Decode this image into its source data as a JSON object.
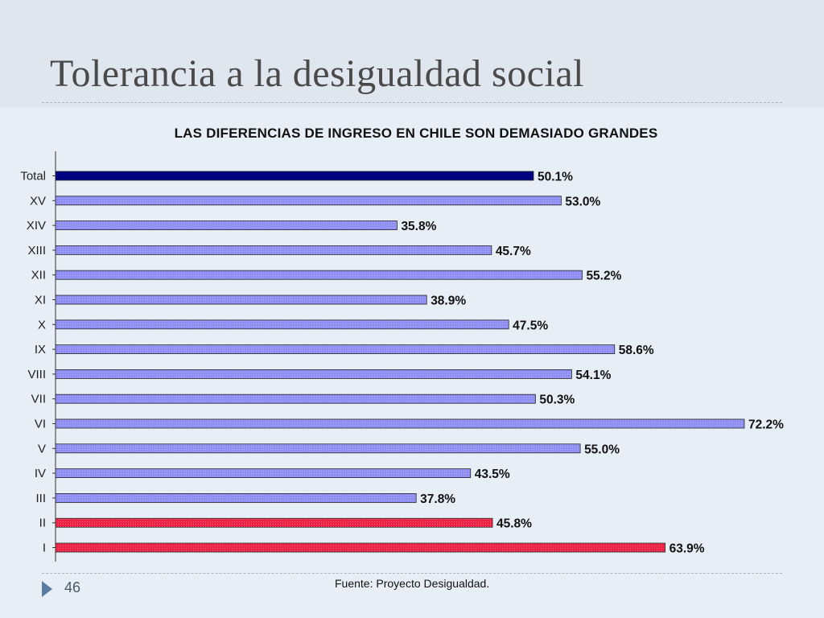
{
  "slide": {
    "title": "Tolerancia a la desigualdad social",
    "page_number": "46",
    "source": "Fuente: Proyecto Desigualdad."
  },
  "colors": {
    "total": "#000080",
    "regular": "#8e8ef5",
    "highlight": "#ee2244",
    "bar_border": "#222222"
  },
  "chart_data": {
    "type": "bar",
    "orientation": "horizontal",
    "title": "LAS DIFERENCIAS DE INGRESO EN CHILE SON DEMASIADO GRANDES",
    "xlabel": "",
    "ylabel": "",
    "xlim": [
      0,
      72.2
    ],
    "grid": false,
    "legend": "none",
    "categories": [
      "Total",
      "XV",
      "XIV",
      "XIII",
      "XII",
      "XI",
      "X",
      "IX",
      "VIII",
      "VII",
      "VI",
      "V",
      "IV",
      "III",
      "II",
      "I"
    ],
    "values": [
      50.1,
      53.0,
      35.8,
      45.7,
      55.2,
      38.9,
      47.5,
      58.6,
      54.1,
      50.3,
      72.2,
      55.0,
      43.5,
      37.8,
      45.8,
      63.9
    ],
    "labels": [
      "50.1%",
      "53.0%",
      "35.8%",
      "45.7%",
      "55.2%",
      "38.9%",
      "47.5%",
      "58.6%",
      "54.1%",
      "50.3%",
      "72.2%",
      "55.0%",
      "43.5%",
      "37.8%",
      "45.8%",
      "63.9%"
    ],
    "bar_colors": [
      "total",
      "regular",
      "regular",
      "regular",
      "regular",
      "regular",
      "regular",
      "regular",
      "regular",
      "regular",
      "regular",
      "regular",
      "regular",
      "regular",
      "highlight",
      "highlight"
    ]
  }
}
